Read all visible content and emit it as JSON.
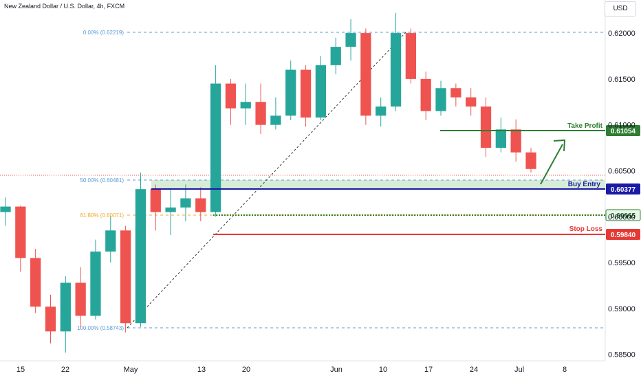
{
  "header": {
    "title": "New Zealand Dollar / U.S. Dollar, 4h, FXCM",
    "currency_button": "USD"
  },
  "chart_data": {
    "type": "candlestick",
    "title": "New Zealand Dollar / U.S. Dollar, 4h, FXCM",
    "y_ticks": [
      "0.62000",
      "0.61500",
      "0.61000",
      "0.60500",
      "0.60000",
      "0.59500",
      "0.59000",
      "0.58500"
    ],
    "x_ticks": [
      "15",
      "22",
      "May",
      "13",
      "20",
      "Jun",
      "10",
      "17",
      "24",
      "Jul",
      "8"
    ],
    "ylim": [
      0.5843,
      0.6236
    ],
    "colors": {
      "up": "#26a69a",
      "down": "#ef5350",
      "fib": "#2962ff",
      "zone": "#d6ecd6"
    },
    "series": [
      {
        "x": "Apr 12",
        "o": 0.6005,
        "h": 0.6021,
        "l": 0.599,
        "c": 0.6011
      },
      {
        "x": "Apr 15",
        "o": 0.6011,
        "h": 0.6012,
        "l": 0.594,
        "c": 0.5955
      },
      {
        "x": "Apr 17",
        "o": 0.5955,
        "h": 0.5965,
        "l": 0.5895,
        "c": 0.5902
      },
      {
        "x": "Apr 19",
        "o": 0.5902,
        "h": 0.5915,
        "l": 0.5862,
        "c": 0.5875
      },
      {
        "x": "Apr 22",
        "o": 0.5875,
        "h": 0.5935,
        "l": 0.5852,
        "c": 0.5928
      },
      {
        "x": "Apr 24",
        "o": 0.5928,
        "h": 0.5945,
        "l": 0.5878,
        "c": 0.5892
      },
      {
        "x": "Apr 26",
        "o": 0.5892,
        "h": 0.5975,
        "l": 0.5888,
        "c": 0.5962
      },
      {
        "x": "Apr 29",
        "o": 0.5962,
        "h": 0.6,
        "l": 0.595,
        "c": 0.5985
      },
      {
        "x": "May 1",
        "o": 0.5985,
        "h": 0.599,
        "l": 0.5874,
        "c": 0.5884
      },
      {
        "x": "May 3",
        "o": 0.5884,
        "h": 0.6048,
        "l": 0.588,
        "c": 0.603
      },
      {
        "x": "May 6",
        "o": 0.603,
        "h": 0.6035,
        "l": 0.5985,
        "c": 0.6005
      },
      {
        "x": "May 8",
        "o": 0.6005,
        "h": 0.603,
        "l": 0.598,
        "c": 0.601
      },
      {
        "x": "May 10",
        "o": 0.601,
        "h": 0.6035,
        "l": 0.5995,
        "c": 0.602
      },
      {
        "x": "May 13",
        "o": 0.602,
        "h": 0.6032,
        "l": 0.5995,
        "c": 0.6005
      },
      {
        "x": "May 15",
        "o": 0.6005,
        "h": 0.6165,
        "l": 0.6,
        "c": 0.6145
      },
      {
        "x": "May 17",
        "o": 0.6145,
        "h": 0.615,
        "l": 0.61,
        "c": 0.6118
      },
      {
        "x": "May 20",
        "o": 0.6118,
        "h": 0.6145,
        "l": 0.61,
        "c": 0.6125
      },
      {
        "x": "May 22",
        "o": 0.6125,
        "h": 0.6145,
        "l": 0.609,
        "c": 0.61
      },
      {
        "x": "May 24",
        "o": 0.61,
        "h": 0.613,
        "l": 0.6095,
        "c": 0.611
      },
      {
        "x": "May 27",
        "o": 0.611,
        "h": 0.617,
        "l": 0.6105,
        "c": 0.616
      },
      {
        "x": "May 29",
        "o": 0.616,
        "h": 0.6165,
        "l": 0.6098,
        "c": 0.6108
      },
      {
        "x": "May 31",
        "o": 0.6108,
        "h": 0.6175,
        "l": 0.6105,
        "c": 0.6165
      },
      {
        "x": "Jun 3",
        "o": 0.6165,
        "h": 0.6195,
        "l": 0.6155,
        "c": 0.6185
      },
      {
        "x": "Jun 5",
        "o": 0.6185,
        "h": 0.6215,
        "l": 0.617,
        "c": 0.62
      },
      {
        "x": "Jun 7",
        "o": 0.62,
        "h": 0.6205,
        "l": 0.61,
        "c": 0.611
      },
      {
        "x": "Jun 10",
        "o": 0.611,
        "h": 0.613,
        "l": 0.6098,
        "c": 0.612
      },
      {
        "x": "Jun 12",
        "o": 0.612,
        "h": 0.6222,
        "l": 0.6115,
        "c": 0.62
      },
      {
        "x": "Jun 14",
        "o": 0.62,
        "h": 0.6205,
        "l": 0.6145,
        "c": 0.615
      },
      {
        "x": "Jun 17",
        "o": 0.615,
        "h": 0.6158,
        "l": 0.6105,
        "c": 0.6115
      },
      {
        "x": "Jun 19",
        "o": 0.6115,
        "h": 0.6148,
        "l": 0.611,
        "c": 0.614
      },
      {
        "x": "Jun 21",
        "o": 0.614,
        "h": 0.6145,
        "l": 0.612,
        "c": 0.613
      },
      {
        "x": "Jun 24",
        "o": 0.613,
        "h": 0.614,
        "l": 0.611,
        "c": 0.612
      },
      {
        "x": "Jun 26",
        "o": 0.612,
        "h": 0.613,
        "l": 0.6065,
        "c": 0.6075
      },
      {
        "x": "Jun 28",
        "o": 0.6075,
        "h": 0.6108,
        "l": 0.607,
        "c": 0.6095
      },
      {
        "x": "Jul 1",
        "o": 0.6095,
        "h": 0.6106,
        "l": 0.606,
        "c": 0.607
      },
      {
        "x": "Jul 2",
        "o": 0.607,
        "h": 0.6075,
        "l": 0.6048,
        "c": 0.6052
      }
    ]
  },
  "fib": {
    "level_0": "0.00% (0.62219)",
    "level_50": "50.00% (0.60481)",
    "level_618": "61.80% (0.60071)",
    "level_100": "100.00% (0.58743)"
  },
  "levels": {
    "take_profit": {
      "label": "Take Profit",
      "value": "0.61054",
      "price": 0.61054,
      "color": "#2e7d32"
    },
    "buy_entry": {
      "label": "Buy Entry",
      "value": "0.60377",
      "price": 0.60377,
      "color": "#1a1aa6"
    },
    "middle": {
      "value": "0.60065",
      "price": 0.60065,
      "color": "#2e7d32"
    },
    "stop_loss": {
      "label": "Stop Loss",
      "value": "0.59840",
      "price": 0.5984,
      "color": "#e53935"
    }
  }
}
